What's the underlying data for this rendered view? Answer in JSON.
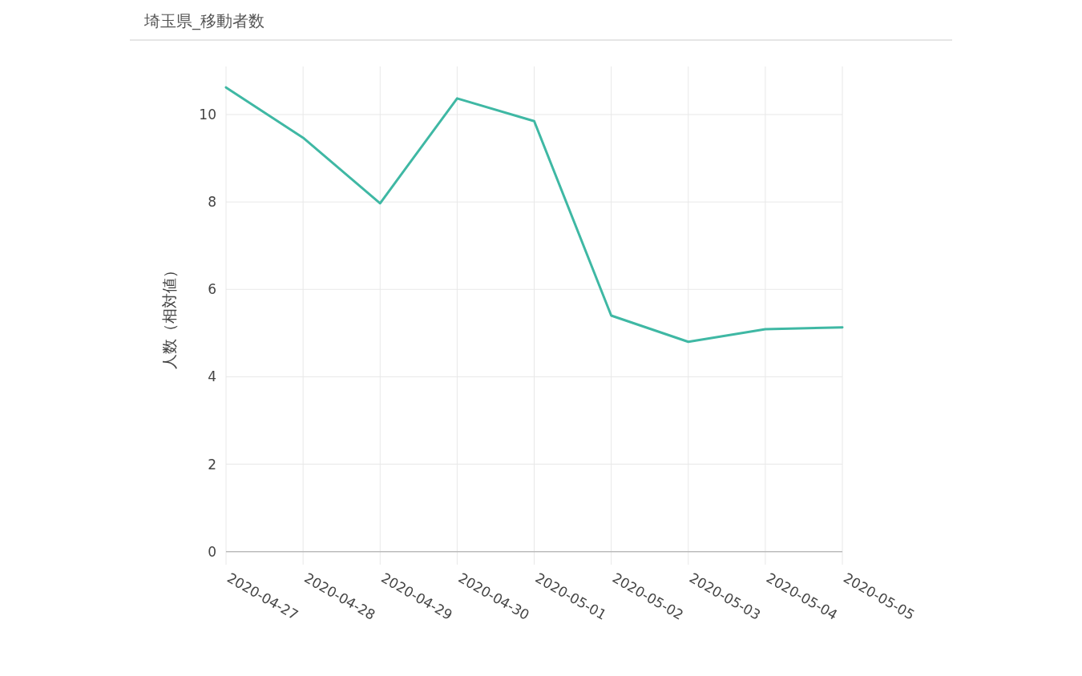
{
  "chart_data": {
    "type": "line",
    "title": "埼玉県_移動者数",
    "ylabel": "人数（相対値）",
    "categories": [
      "2020-04-27",
      "2020-04-28",
      "2020-04-29",
      "2020-04-30",
      "2020-05-01",
      "2020-05-02",
      "2020-05-03",
      "2020-05-04",
      "2020-05-05"
    ],
    "series": [
      {
        "color": "#3fb8a4",
        "values": [
          10.62,
          9.47,
          7.97,
          10.37,
          9.85,
          5.4,
          4.8,
          5.09,
          5.13
        ]
      }
    ],
    "ylim": [
      -0.3,
      11.1
    ],
    "yticks": [
      0,
      2,
      4,
      6,
      8,
      10
    ],
    "grid": true
  }
}
